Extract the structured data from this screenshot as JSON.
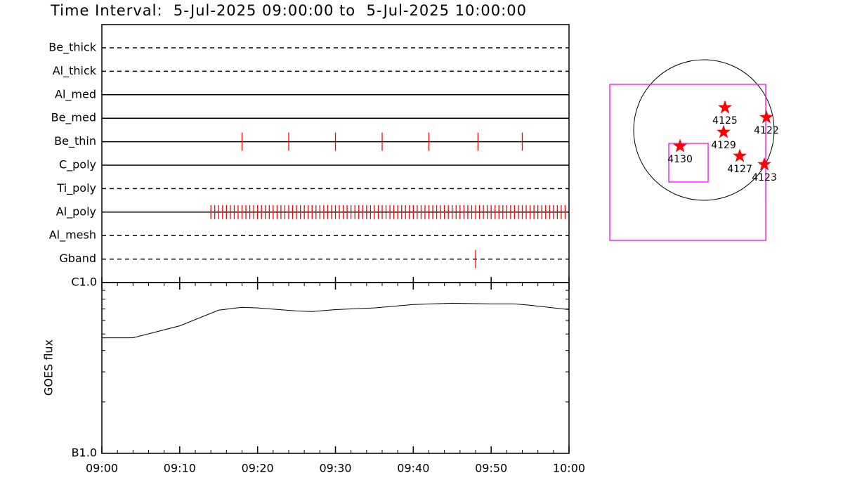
{
  "title": "Time Interval:  5-Jul-2025 09:00:00 to  5-Jul-2025 10:00:00",
  "chart_data": [
    {
      "type": "timeline",
      "xlim": [
        0,
        60
      ],
      "color": "#ff0000",
      "series": [
        {
          "name": "Be_thick",
          "line": "dashed",
          "x": []
        },
        {
          "name": "Al_thick",
          "line": "dashed",
          "x": []
        },
        {
          "name": "Al_med",
          "line": "solid",
          "x": []
        },
        {
          "name": "Be_med",
          "line": "solid",
          "x": []
        },
        {
          "name": "Be_thin",
          "line": "solid",
          "x": [
            18,
            24,
            30,
            36,
            42,
            48.3,
            54
          ]
        },
        {
          "name": "C_poly",
          "line": "solid",
          "x": []
        },
        {
          "name": "Ti_poly",
          "line": "dashed",
          "x": []
        },
        {
          "name": "Al_poly",
          "line": "solid",
          "x": [
            14,
            14.5,
            15,
            15.5,
            16,
            16.5,
            17,
            17.5,
            18,
            18.5,
            19,
            19.5,
            20,
            20.5,
            21,
            21.5,
            22,
            22.5,
            23,
            23.5,
            24,
            24.5,
            25,
            25.5,
            26,
            26.5,
            27,
            27.5,
            28,
            28.5,
            29,
            29.5,
            30,
            30.5,
            31,
            31.5,
            32,
            32.5,
            33,
            33.5,
            34,
            34.5,
            35,
            35.5,
            36,
            36.5,
            37,
            37.5,
            38,
            38.5,
            39,
            39.5,
            40,
            40.5,
            41,
            41.5,
            42,
            42.5,
            43,
            43.5,
            44,
            44.5,
            45,
            45.5,
            46,
            46.5,
            47,
            47.5,
            48,
            48.5,
            49,
            49.5,
            50,
            50.5,
            51,
            51.5,
            52,
            52.5,
            53,
            53.5,
            54,
            54.5,
            55,
            55.5,
            56,
            56.5,
            57,
            57.5,
            58,
            58.5,
            59,
            59.5
          ]
        },
        {
          "name": "Al_mesh",
          "line": "dashed",
          "x": []
        },
        {
          "name": "Gband",
          "line": "dashed",
          "x": [
            48
          ]
        }
      ]
    },
    {
      "type": "line",
      "ylabel": "GOES flux",
      "log": true,
      "color": "#000000",
      "xlim": [
        0,
        60
      ],
      "xticks": [
        {
          "value": 0,
          "label": "09:00"
        },
        {
          "value": 10,
          "label": "09:10"
        },
        {
          "value": 20,
          "label": "09:20"
        },
        {
          "value": 30,
          "label": "09:30"
        },
        {
          "value": 40,
          "label": "09:40"
        },
        {
          "value": 50,
          "label": "09:50"
        },
        {
          "value": 60,
          "label": "10:00"
        }
      ],
      "xminorticks": [
        2,
        4,
        6,
        8,
        12,
        14,
        16,
        18,
        22,
        24,
        26,
        28,
        32,
        34,
        36,
        38,
        42,
        44,
        46,
        48,
        52,
        54,
        56,
        58
      ],
      "ylim": [
        1e-07,
        1e-06
      ],
      "yticks": [
        {
          "value": 1e-07,
          "label": "B1.0"
        },
        {
          "value": 1e-06,
          "label": "C1.0"
        }
      ],
      "yminorticks": [
        2e-07,
        3e-07,
        4e-07,
        5e-07,
        6e-07,
        7e-07,
        8e-07,
        9e-07
      ],
      "x": [
        0,
        4,
        10,
        15,
        18,
        20,
        25,
        27,
        30,
        35,
        40,
        45,
        50,
        53,
        55,
        60
      ],
      "values": [
        4.75e-07,
        4.75e-07,
        5.58e-07,
        6.89e-07,
        7.16e-07,
        7.1e-07,
        6.82e-07,
        6.76e-07,
        6.94e-07,
        7.1e-07,
        7.44e-07,
        7.57e-07,
        7.5e-07,
        7.5e-07,
        7.36e-07,
        6.94e-07
      ]
    },
    {
      "type": "map",
      "disk_radius": 960,
      "disk_color": "#000000",
      "boxes": [
        {
          "x": [
            -1286,
            845
          ],
          "y": [
            624,
            -1507
          ],
          "color": "#ff00ff"
        },
        {
          "x": [
            -480,
            58
          ],
          "y": [
            -182,
            -710
          ],
          "color": "#ff00ff"
        }
      ],
      "region_color": "#ff0000",
      "regions": [
        {
          "name": "4125",
          "x": 288,
          "y": 307
        },
        {
          "name": "4122",
          "x": 854,
          "y": 173
        },
        {
          "name": "4129",
          "x": 269,
          "y": -29
        },
        {
          "name": "4130",
          "x": -326,
          "y": -221
        },
        {
          "name": "4127",
          "x": 490,
          "y": -355
        },
        {
          "name": "4123",
          "x": 826,
          "y": -470
        }
      ]
    }
  ]
}
